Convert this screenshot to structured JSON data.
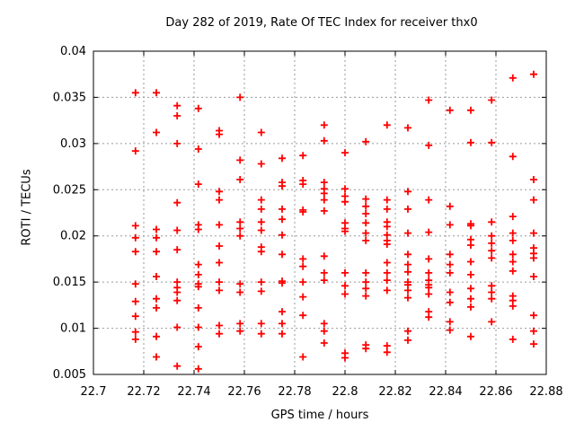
{
  "chart_data": {
    "type": "scatter",
    "title": "Day 282 of 2019, Rate Of TEC Index for receiver thx0",
    "xlabel": "GPS time / hours",
    "ylabel": "ROTI / TECUs",
    "xlim": [
      22.7,
      22.88
    ],
    "ylim": [
      0.005,
      0.04
    ],
    "grid": true,
    "legend": "none",
    "marker": "plus",
    "colors": {
      "marker": "#ff0000",
      "grid": "#9a9a9a",
      "border": "#000000"
    },
    "xticks": [
      [
        22.7,
        "22.7"
      ],
      [
        22.72,
        "22.72"
      ],
      [
        22.74,
        "22.74"
      ],
      [
        22.76,
        "22.76"
      ],
      [
        22.78,
        "22.78"
      ],
      [
        22.8,
        "22.8"
      ],
      [
        22.82,
        "22.82"
      ],
      [
        22.84,
        "22.84"
      ],
      [
        22.86,
        "22.86"
      ],
      [
        22.88,
        "22.88"
      ]
    ],
    "yticks": [
      [
        0.005,
        "0.005"
      ],
      [
        0.01,
        "0.01"
      ],
      [
        0.015,
        "0.015"
      ],
      [
        0.02,
        "0.02"
      ],
      [
        0.025,
        "0.025"
      ],
      [
        0.03,
        "0.03"
      ],
      [
        0.035,
        "0.035"
      ],
      [
        0.04,
        "0.04"
      ]
    ],
    "series": [
      {
        "name": "ROTI",
        "columns": [
          {
            "x": 22.7167,
            "y": [
              0.0355,
              0.0292,
              0.0211,
              0.0198,
              0.0183,
              0.0148,
              0.0129,
              0.0113,
              0.0096,
              0.0088
            ]
          },
          {
            "x": 22.725,
            "y": [
              0.0355,
              0.0312,
              0.0207,
              0.0198,
              0.0183,
              0.0156,
              0.0132,
              0.0122,
              0.0091,
              0.0069
            ]
          },
          {
            "x": 22.7333,
            "y": [
              0.0341,
              0.033,
              0.03,
              0.0236,
              0.0206,
              0.0185,
              0.015,
              0.0144,
              0.0139,
              0.013,
              0.0101,
              0.0059
            ]
          },
          {
            "x": 22.7417,
            "y": [
              0.0338,
              0.0294,
              0.0256,
              0.0212,
              0.0207,
              0.0169,
              0.0158,
              0.0148,
              0.0145,
              0.0122,
              0.0101,
              0.008,
              0.0056
            ]
          },
          {
            "x": 22.75,
            "y": [
              0.0314,
              0.031,
              0.0248,
              0.0239,
              0.0212,
              0.0189,
              0.0171,
              0.015,
              0.0141,
              0.0103,
              0.0094
            ]
          },
          {
            "x": 22.7583,
            "y": [
              0.035,
              0.0282,
              0.0261,
              0.0215,
              0.0208,
              0.02,
              0.0148,
              0.0139,
              0.0105,
              0.0097
            ]
          },
          {
            "x": 22.7667,
            "y": [
              0.0312,
              0.0278,
              0.0239,
              0.0229,
              0.0215,
              0.0206,
              0.0188,
              0.0183,
              0.015,
              0.014,
              0.0105,
              0.0094
            ]
          },
          {
            "x": 22.775,
            "y": [
              0.0284,
              0.0258,
              0.0254,
              0.0229,
              0.0218,
              0.0201,
              0.018,
              0.0151,
              0.0149,
              0.0118,
              0.0105,
              0.0094
            ]
          },
          {
            "x": 22.7833,
            "y": [
              0.0287,
              0.026,
              0.0256,
              0.0228,
              0.0226,
              0.0175,
              0.0167,
              0.015,
              0.0134,
              0.0114,
              0.0069
            ]
          },
          {
            "x": 22.7917,
            "y": [
              0.032,
              0.0303,
              0.0258,
              0.0251,
              0.0246,
              0.0239,
              0.0227,
              0.0178,
              0.016,
              0.0152,
              0.0105,
              0.0097,
              0.0084
            ]
          },
          {
            "x": 22.8,
            "y": [
              0.029,
              0.0251,
              0.0243,
              0.0237,
              0.0214,
              0.0208,
              0.0205,
              0.016,
              0.0146,
              0.0137,
              0.0073,
              0.0068
            ]
          },
          {
            "x": 22.8083,
            "y": [
              0.0302,
              0.024,
              0.0232,
              0.0224,
              0.0214,
              0.0203,
              0.0195,
              0.016,
              0.015,
              0.0143,
              0.0135,
              0.0082,
              0.0078
            ]
          },
          {
            "x": 22.8167,
            "y": [
              0.032,
              0.0239,
              0.0229,
              0.0215,
              0.021,
              0.0201,
              0.0195,
              0.0191,
              0.0171,
              0.016,
              0.0152,
              0.0141,
              0.0081,
              0.0074
            ]
          },
          {
            "x": 22.825,
            "y": [
              0.0317,
              0.0248,
              0.0229,
              0.0203,
              0.018,
              0.0169,
              0.0161,
              0.015,
              0.0147,
              0.0141,
              0.0133,
              0.0097,
              0.0087
            ]
          },
          {
            "x": 22.8333,
            "y": [
              0.0347,
              0.0298,
              0.0239,
              0.0204,
              0.0175,
              0.016,
              0.0152,
              0.0147,
              0.0144,
              0.0137,
              0.0118,
              0.0112
            ]
          },
          {
            "x": 22.8417,
            "y": [
              0.0336,
              0.0232,
              0.0212,
              0.018,
              0.0169,
              0.016,
              0.0139,
              0.0128,
              0.0107,
              0.0098
            ]
          },
          {
            "x": 22.85,
            "y": [
              0.0336,
              0.0301,
              0.0213,
              0.0211,
              0.0196,
              0.019,
              0.0172,
              0.0158,
              0.0143,
              0.0132,
              0.0123,
              0.0091
            ]
          },
          {
            "x": 22.8583,
            "y": [
              0.0347,
              0.0301,
              0.0215,
              0.02,
              0.0192,
              0.0184,
              0.0176,
              0.0146,
              0.0139,
              0.0132,
              0.0107
            ]
          },
          {
            "x": 22.8667,
            "y": [
              0.0371,
              0.0286,
              0.0221,
              0.0203,
              0.0195,
              0.018,
              0.0172,
              0.0162,
              0.0135,
              0.013,
              0.0124,
              0.0088
            ]
          },
          {
            "x": 22.875,
            "y": [
              0.0375,
              0.0261,
              0.0239,
              0.0203,
              0.0187,
              0.0181,
              0.0176,
              0.0156,
              0.0114,
              0.0097,
              0.0083
            ]
          }
        ]
      }
    ]
  }
}
